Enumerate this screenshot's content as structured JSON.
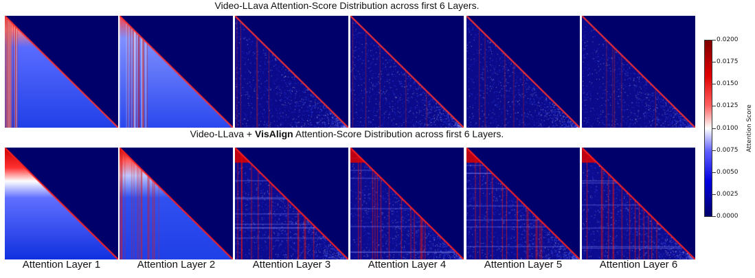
{
  "chart_data": {
    "type": "heatmap",
    "rows": [
      {
        "title_prefix": "Video-LLava Attention-Score Distribution across first 6 Layers.",
        "title_bold": "",
        "title_suffix": "",
        "model": "Video-LLava"
      },
      {
        "title_prefix": "Video-LLava + ",
        "title_bold": "VisAlign",
        "title_suffix": " Attention-Score Distribution across first 6 Layers.",
        "model": "Video-LLava + VisAlign"
      }
    ],
    "layers": [
      "Attention Layer 1",
      "Attention Layer 2",
      "Attention Layer 3",
      "Attention Layer 4",
      "Attention Layer 5",
      "Attention Layer 6"
    ],
    "structure": "lower-triangular causal attention map",
    "colorbar": {
      "label": "Attention Score",
      "min": 0.0,
      "max": 0.02,
      "ticks": [
        "0.0000",
        "0.0025",
        "0.0050",
        "0.0075",
        "0.0100",
        "0.0125",
        "0.0150",
        "0.0175",
        "0.0200"
      ],
      "colormap": "seismic",
      "colors": {
        "low": "#00006a",
        "mid": "#ffffff",
        "high": "#800000"
      }
    }
  }
}
